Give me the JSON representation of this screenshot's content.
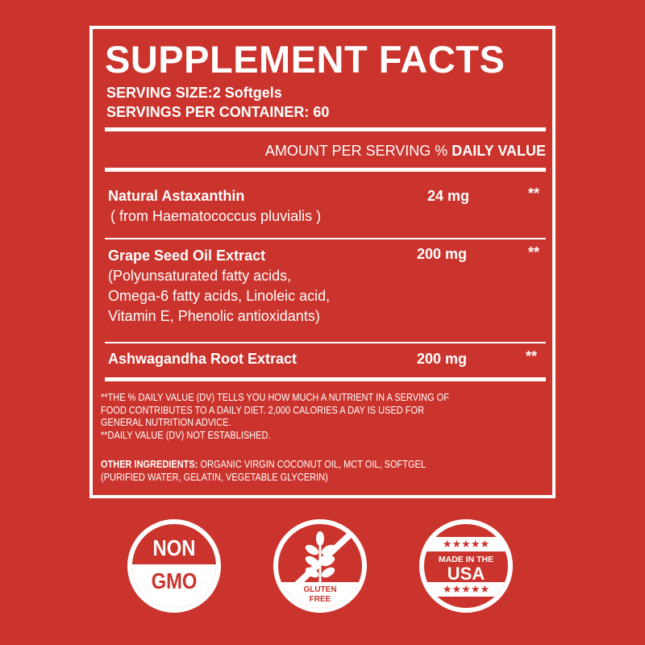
{
  "title": "SUPPLEMENT FACTS",
  "serving_size": "SERVING SIZE:2 Softgels",
  "servings_per_container": "SERVINGS PER CONTAINER: 60",
  "header": {
    "amount": "AMOUNT PER SERVING %",
    "daily_value": "DAILY VALUE"
  },
  "rows": [
    {
      "name": "Natural Astaxanthin",
      "detail": [
        "( from Haematococcus pluvialis )"
      ],
      "amount": "24 mg",
      "dv": "**"
    },
    {
      "name": "Grape Seed Oil Extract",
      "detail": [
        "(Polyunsaturated fatty acids,",
        "Omega-6 fatty acids, Linoleic acid,",
        "Vitamin E, Phenolic antioxidants)"
      ],
      "amount": "200 mg",
      "dv": "**"
    },
    {
      "name": "Ashwagandha Root Extract",
      "detail": [],
      "amount": "200 mg",
      "dv": "**"
    }
  ],
  "footnotes": [
    "**THE % DAILY VALUE (DV) TELLS YOU HOW MUCH A NUTRIENT IN A SERVING OF",
    "FOOD CONTRIBUTES TO A DAILY DIET. 2,000 CALORIES A DAY IS USED FOR",
    "GENERAL NUTRITION ADVICE.",
    "**DAILY VALUE (DV) NOT ESTABLISHED."
  ],
  "other": {
    "label": "OTHER INGREDIENTS:",
    "text": " ORGANIC VIRGIN COCONUT OIL, MCT OIL, SOFTGEL",
    "text2": "(PURIFIED WATER, GELATIN, VEGETABLE GLYCERIN)"
  },
  "badges": {
    "nongmo": [
      "NON",
      "GMO"
    ],
    "gluten": [
      "GLUTEN",
      "FREE"
    ],
    "usa": [
      "MADE IN THE",
      "USA"
    ],
    "stars": "★★★★★"
  },
  "colors": {
    "background": "#cb342c",
    "foreground": "#ffffff"
  }
}
